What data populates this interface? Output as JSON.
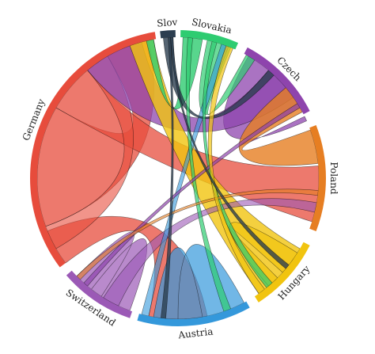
{
  "chart_data": {
    "type": "chord",
    "groups": [
      {
        "name": "Slov",
        "color": "#2c3e50"
      },
      {
        "name": "Slovakia",
        "color": "#2ecc71"
      },
      {
        "name": "Czech",
        "color": "#8e44ad"
      },
      {
        "name": "Poland",
        "color": "#e67e22"
      },
      {
        "name": "Hungary",
        "color": "#f1c40f"
      },
      {
        "name": "Austria",
        "color": "#3498db"
      },
      {
        "name": "Switzerland",
        "color": "#9b59b6"
      },
      {
        "name": "Germany",
        "color": "#e74c3c"
      }
    ],
    "title": ""
  }
}
